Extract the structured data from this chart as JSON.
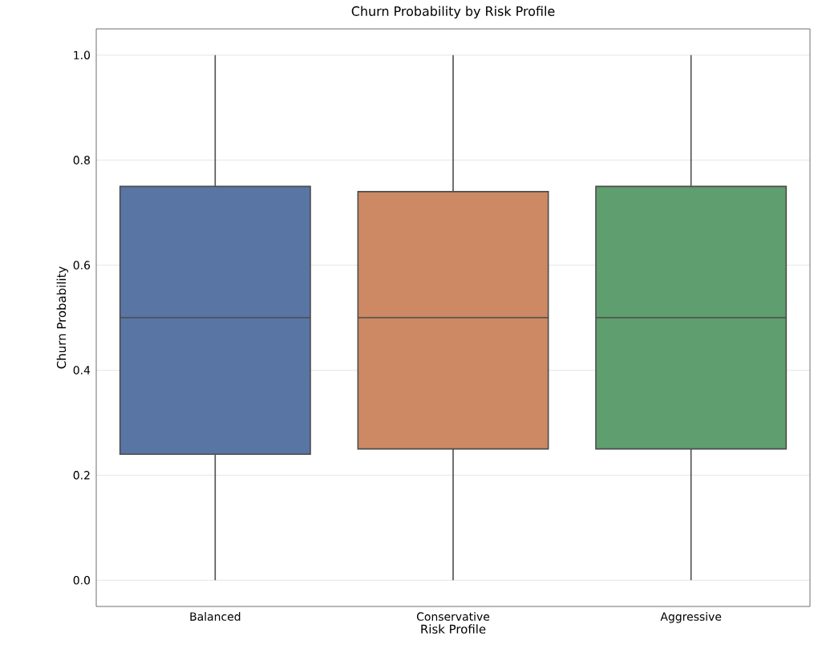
{
  "chart_data": {
    "type": "box",
    "title": "Churn Probability by Risk Profile",
    "xlabel": "Risk Profile",
    "ylabel": "Churn Probability",
    "categories": [
      "Balanced",
      "Conservative",
      "Aggressive"
    ],
    "colors": [
      "#5875a4",
      "#cc8963",
      "#5f9e6e"
    ],
    "boxes": [
      {
        "low": 0,
        "q1": 0.24,
        "median": 0.5,
        "q3": 0.75,
        "high": 1.0
      },
      {
        "low": 0,
        "q1": 0.25,
        "median": 0.5,
        "q3": 0.74,
        "high": 1.0
      },
      {
        "low": 0,
        "q1": 0.25,
        "median": 0.5,
        "q3": 0.75,
        "high": 1.0
      }
    ],
    "ylim": [
      -0.05,
      1.05
    ],
    "yticks": [
      {
        "value": 0,
        "label": "0.0"
      },
      {
        "value": 0.2,
        "label": "0.2"
      },
      {
        "value": 0.4,
        "label": "0.4"
      },
      {
        "value": 0.6,
        "label": "0.6"
      },
      {
        "value": 0.8,
        "label": "0.8"
      },
      {
        "value": 1.0,
        "label": "1.0"
      }
    ],
    "grid": "y"
  }
}
